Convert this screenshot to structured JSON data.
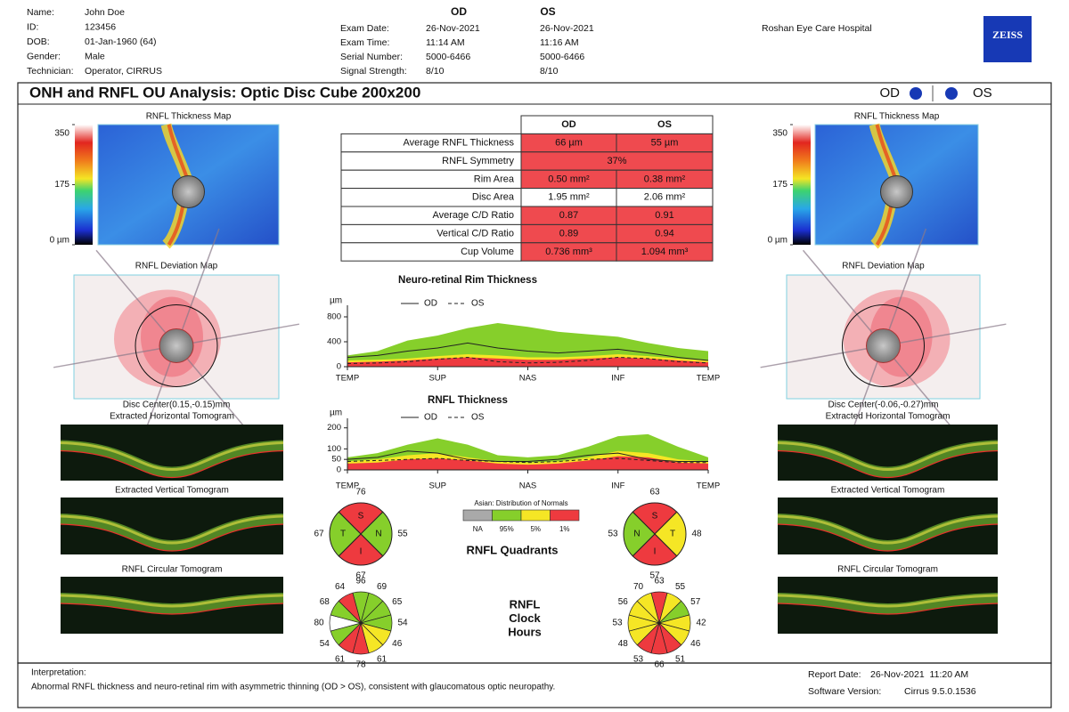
{
  "header": {
    "patient": [
      [
        "Name:",
        "John Doe"
      ],
      [
        "ID:",
        "123456"
      ],
      [
        "DOB:",
        "01-Jan-1960 (64)"
      ],
      [
        "Gender:",
        "Male"
      ],
      [
        "Technician:",
        "Operator, CIRRUS"
      ]
    ],
    "exam": {
      "columns": [
        "OD",
        "OS"
      ],
      "rows": [
        [
          "Exam Date:",
          "26-Nov-2021",
          "26-Nov-2021"
        ],
        [
          "Exam Time:",
          "11:14 AM",
          "11:16 AM"
        ],
        [
          "Serial Number:",
          "5000-6466",
          "5000-6466"
        ],
        [
          "Signal Strength:",
          "8/10",
          "8/10"
        ]
      ]
    },
    "hospital": "Roshan Eye Care Hospital",
    "logo": "ZEISS"
  },
  "title": {
    "text": "ONH and RNFL OU Analysis: Optic Disc Cube 200x200",
    "od": "OD",
    "os": "OS",
    "eye_color": "#1739b5"
  },
  "eyes": [
    {
      "thickness_map": {
        "title": "RNFL Thickness Map",
        "scale": [
          350,
          175,
          {
            "value": 0,
            "label": "0 µm"
          }
        ]
      },
      "deviation_map": {
        "title": "RNFL Deviation Map",
        "disc_center": "Disc Center(0.15,-0.15)mm"
      },
      "tomograms": [
        "Extracted Horizontal Tomogram",
        "Extracted Vertical Tomogram",
        "RNFL Circular Tomogram"
      ],
      "quadrants": [
        {
          "label": "S",
          "value": 76,
          "color": "#ee3a3f"
        },
        {
          "label": "N",
          "value": 55,
          "color": "#86cf2b"
        },
        {
          "label": "I",
          "value": 67,
          "color": "#ee3a3f"
        },
        {
          "label": "T",
          "value": 67,
          "color": "#86cf2b"
        }
      ],
      "clock_hours": [
        {
          "value": 96,
          "color": "#86cf2b"
        },
        {
          "value": 69,
          "color": "#86cf2b"
        },
        {
          "value": 65,
          "color": "#86cf2b"
        },
        {
          "value": 54,
          "color": "#86cf2b"
        },
        {
          "value": 46,
          "color": "#f5e625"
        },
        {
          "value": 61,
          "color": "#f5e625"
        },
        {
          "value": 78,
          "color": "#ee3a3f"
        },
        {
          "value": 61,
          "color": "#ee3a3f"
        },
        {
          "value": 54,
          "color": "#86cf2b"
        },
        {
          "value": 80,
          "color": "#ffffff"
        },
        {
          "value": 68,
          "color": "#86cf2b"
        },
        {
          "value": 64,
          "color": "#ee3a3f"
        }
      ]
    },
    {
      "thickness_map": {
        "title": "RNFL Thickness Map",
        "scale": [
          350,
          175,
          {
            "value": 0,
            "label": "0 µm"
          }
        ]
      },
      "deviation_map": {
        "title": "RNFL Deviation Map",
        "disc_center": "Disc Center(-0.06,-0.27)mm"
      },
      "tomograms": [
        "Extracted Horizontal Tomogram",
        "Extracted Vertical Tomogram",
        "RNFL Circular Tomogram"
      ],
      "quadrants": [
        {
          "label": "S",
          "value": 63,
          "color": "#ee3a3f"
        },
        {
          "label": "T",
          "value": 48,
          "color": "#f5e625"
        },
        {
          "label": "I",
          "value": 57,
          "color": "#ee3a3f"
        },
        {
          "label": "N",
          "value": 53,
          "color": "#86cf2b"
        }
      ],
      "clock_hours": [
        {
          "value": 63,
          "color": "#ee3a3f"
        },
        {
          "value": 55,
          "color": "#f5e625"
        },
        {
          "value": 57,
          "color": "#86cf2b"
        },
        {
          "value": 42,
          "color": "#f5e625"
        },
        {
          "value": 46,
          "color": "#f5e625"
        },
        {
          "value": 51,
          "color": "#ee3a3f"
        },
        {
          "value": 66,
          "color": "#ee3a3f"
        },
        {
          "value": 53,
          "color": "#ee3a3f"
        },
        {
          "value": 48,
          "color": "#f5e625"
        },
        {
          "value": 53,
          "color": "#f5e625"
        },
        {
          "value": 56,
          "color": "#f5e625"
        },
        {
          "value": 70,
          "color": "#f5e625"
        }
      ]
    }
  ],
  "table": {
    "columns": [
      "OD",
      "OS"
    ],
    "rows": [
      {
        "label": "Average RNFL Thickness",
        "od": "66 µm",
        "os": "55 µm",
        "color": "#ef4a4f"
      },
      {
        "label": "RNFL Symmetry",
        "value": "37%",
        "color": "#ef4a4f"
      },
      {
        "label": "Rim Area",
        "od": "0.50 mm²",
        "os": "0.38 mm²",
        "color": "#ef4a4f"
      },
      {
        "label": "Disc Area",
        "od": "1.95 mm²",
        "os": "2.06 mm²",
        "color": "#ffffff"
      },
      {
        "label": "Average C/D Ratio",
        "od": "0.87",
        "os": "0.91",
        "color": "#ef4a4f"
      },
      {
        "label": "Vertical C/D Ratio",
        "od": "0.89",
        "os": "0.94",
        "color": "#ef4a4f"
      },
      {
        "label": "Cup Volume",
        "od": "0.736 mm³",
        "os": "1.094 mm³",
        "color": "#ef4a4f"
      }
    ]
  },
  "charts": [
    {
      "type": "line",
      "title": "Neuro-retinal Rim Thickness",
      "y_label": "µm",
      "xlim": [
        0,
        360
      ],
      "xticks": [
        {
          "value": 0,
          "label": "TEMP"
        },
        {
          "value": 90,
          "label": "SUP"
        },
        {
          "value": 180,
          "label": "NAS"
        },
        {
          "value": 270,
          "label": "INF"
        },
        {
          "value": 360,
          "label": "TEMP"
        }
      ],
      "ylim": [
        0,
        900
      ],
      "yticks": [
        0,
        400,
        800
      ],
      "x": [
        0,
        30,
        60,
        90,
        120,
        150,
        180,
        210,
        240,
        270,
        300,
        330,
        360
      ],
      "bands": [
        {
          "color": "#86cf2b",
          "values": [
            180,
            250,
            420,
            500,
            620,
            700,
            640,
            560,
            520,
            480,
            380,
            300,
            250
          ]
        },
        {
          "color": "#f5e625",
          "values": [
            100,
            110,
            130,
            170,
            200,
            180,
            150,
            150,
            170,
            200,
            170,
            130,
            100
          ]
        },
        {
          "color": "#ee3a3f",
          "values": [
            70,
            80,
            100,
            130,
            150,
            130,
            110,
            110,
            130,
            150,
            130,
            100,
            70
          ]
        }
      ],
      "series": [
        {
          "name": "OD",
          "color": "#222222",
          "dash": false,
          "values": [
            150,
            180,
            250,
            300,
            380,
            300,
            250,
            220,
            250,
            280,
            220,
            150,
            100
          ]
        },
        {
          "name": "OS",
          "color": "#222222",
          "dash": true,
          "values": [
            50,
            60,
            80,
            120,
            150,
            80,
            60,
            70,
            100,
            150,
            130,
            80,
            60
          ]
        }
      ]
    },
    {
      "type": "line",
      "title": "RNFL Thickness",
      "y_label": "µm",
      "xlim": [
        0,
        360
      ],
      "xticks": [
        {
          "value": 0,
          "label": "TEMP"
        },
        {
          "value": 90,
          "label": "SUP"
        },
        {
          "value": 180,
          "label": "NAS"
        },
        {
          "value": 270,
          "label": "INF"
        },
        {
          "value": 360,
          "label": "TEMP"
        }
      ],
      "ylim": [
        0,
        220
      ],
      "yticks": [
        0,
        50,
        100,
        200
      ],
      "x": [
        0,
        30,
        60,
        90,
        120,
        150,
        180,
        210,
        240,
        270,
        300,
        330,
        360
      ],
      "bands": [
        {
          "color": "#86cf2b",
          "values": [
            60,
            80,
            120,
            150,
            120,
            70,
            60,
            70,
            110,
            160,
            170,
            110,
            60
          ]
        },
        {
          "color": "#f5e625",
          "values": [
            40,
            50,
            70,
            80,
            60,
            40,
            35,
            40,
            60,
            90,
            80,
            50,
            40
          ]
        },
        {
          "color": "#ee3a3f",
          "values": [
            30,
            35,
            50,
            55,
            45,
            30,
            25,
            30,
            45,
            65,
            60,
            35,
            30
          ]
        }
      ],
      "series": [
        {
          "name": "OD",
          "color": "#222222",
          "dash": false,
          "values": [
            50,
            60,
            90,
            80,
            50,
            40,
            40,
            50,
            70,
            80,
            50,
            40,
            40
          ]
        },
        {
          "name": "OS",
          "color": "#222222",
          "dash": true,
          "values": [
            40,
            45,
            50,
            55,
            45,
            40,
            35,
            40,
            50,
            55,
            45,
            35,
            35
          ]
        }
      ]
    }
  ],
  "distribution": {
    "title": "Asian: Distribution of Normals",
    "classes": [
      {
        "label": "NA",
        "color": "#a9a9a9"
      },
      {
        "label": "95%",
        "color": "#86cf2b"
      },
      {
        "label": "5%",
        "color": "#f5e625"
      },
      {
        "label": "1%",
        "color": "#ee3a3f"
      }
    ]
  },
  "quadrants_title": "RNFL Quadrants",
  "clock_title": [
    "RNFL",
    "Clock",
    "Hours"
  ],
  "footer": {
    "interpretation_label": "Interpretation:",
    "interpretation": "Abnormal RNFL thickness and neuro-retinal rim with asymmetric thinning (OD > OS), consistent with glaucomatous optic neuropathy.",
    "report_date_label": "Report Date:",
    "report_date": "26-Nov-2021  11:20 AM",
    "software_label": "Software Version:",
    "software": "Cirrus 9.5.0.1536"
  }
}
